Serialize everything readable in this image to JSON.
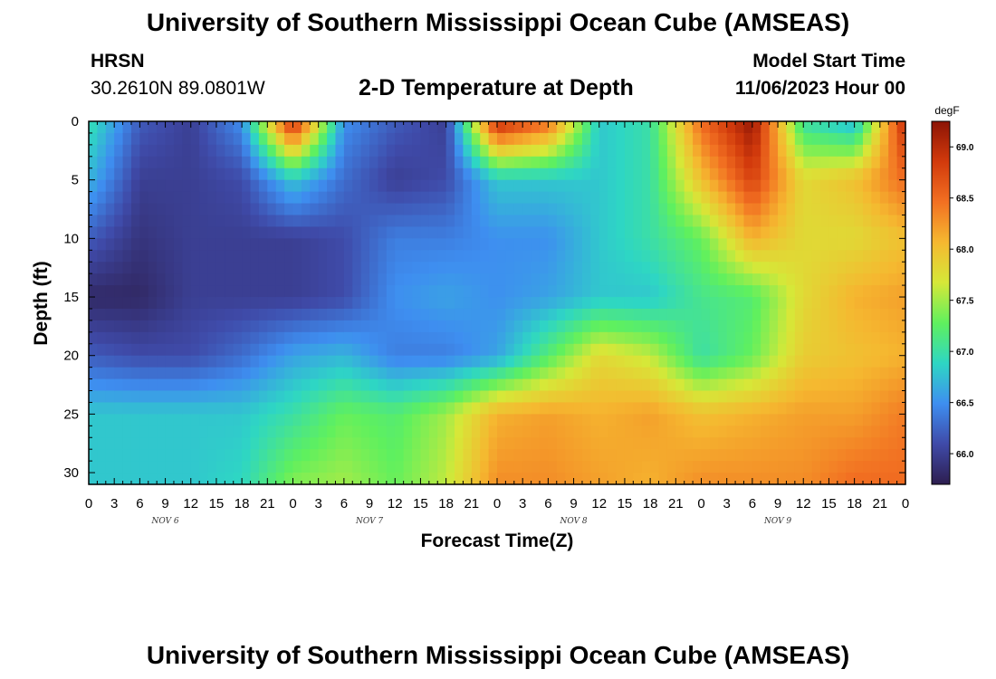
{
  "header": {
    "title": "University of Southern Mississippi Ocean Cube (AMSEAS)",
    "station": "HRSN",
    "coordinates": "30.2610N  89.0801W",
    "subtitle": "2-D Temperature at Depth",
    "model_start_label": "Model Start Time",
    "model_start_value": "11/06/2023 Hour 00"
  },
  "footer": {
    "title": "University of Southern Mississippi Ocean Cube (AMSEAS)"
  },
  "chart_data": {
    "type": "heatmap",
    "title": "2-D Temperature at Depth",
    "xlabel": "Forecast Time(Z)",
    "ylabel": "Depth (ft)",
    "x_tick_labels": [
      "0",
      "3",
      "6",
      "9",
      "12",
      "15",
      "18",
      "21",
      "0",
      "3",
      "6",
      "9",
      "12",
      "15",
      "18",
      "21",
      "0",
      "3",
      "6",
      "9",
      "12",
      "15",
      "18",
      "21",
      "0",
      "3",
      "6",
      "9",
      "12",
      "15",
      "18",
      "21",
      "0"
    ],
    "x_range_hours": [
      0,
      96
    ],
    "day_labels": [
      "NOV 6",
      "NOV 7",
      "NOV 8",
      "NOV 9"
    ],
    "y_ticks": [
      0,
      5,
      10,
      15,
      20,
      25,
      30
    ],
    "y_range": [
      0,
      31
    ],
    "y_inverted": true,
    "colorbar": {
      "unit": "degF",
      "ticks": [
        66.0,
        66.5,
        67.0,
        67.5,
        68.0,
        68.5,
        69.0
      ],
      "range": [
        65.7,
        69.25
      ]
    },
    "colorscale": [
      "#2d1e4f",
      "#3f4aa8",
      "#3e8ef0",
      "#2ed6c4",
      "#5ff05e",
      "#d6e838",
      "#f5b830",
      "#f27022",
      "#d23a0c",
      "#8c1405"
    ],
    "grid_x_hours": [
      0,
      6,
      12,
      18,
      24,
      30,
      36,
      42,
      48,
      54,
      60,
      66,
      72,
      78,
      84,
      90,
      96
    ],
    "grid_depths_ft": [
      0,
      5,
      10,
      15,
      20,
      25,
      31
    ],
    "temperature_degF": [
      [
        67.0,
        66.2,
        66.0,
        66.5,
        69.0,
        66.5,
        66.2,
        66.0,
        69.0,
        68.5,
        66.8,
        67.0,
        68.5,
        69.2,
        67.0,
        66.7,
        69.0
      ],
      [
        66.7,
        66.0,
        66.0,
        66.1,
        66.8,
        66.3,
        66.0,
        66.1,
        66.8,
        66.8,
        66.8,
        67.0,
        68.0,
        68.8,
        67.8,
        68.0,
        68.5
      ],
      [
        66.2,
        65.9,
        66.0,
        66.0,
        66.0,
        66.1,
        66.4,
        66.4,
        66.5,
        66.5,
        66.8,
        67.0,
        67.3,
        68.1,
        67.8,
        67.8,
        68.0
      ],
      [
        65.8,
        65.8,
        66.0,
        66.0,
        66.0,
        66.1,
        66.5,
        66.6,
        66.5,
        66.6,
        66.8,
        66.8,
        67.1,
        67.2,
        67.8,
        68.1,
        68.2
      ],
      [
        66.2,
        66.1,
        66.1,
        66.3,
        66.6,
        66.7,
        66.4,
        66.4,
        66.6,
        67.2,
        67.8,
        67.6,
        67.0,
        67.3,
        67.9,
        68.0,
        68.1
      ],
      [
        66.8,
        66.8,
        66.8,
        66.8,
        67.0,
        67.3,
        67.2,
        67.5,
        68.1,
        68.2,
        68.1,
        68.2,
        68.0,
        68.1,
        68.2,
        68.2,
        68.4
      ],
      [
        66.8,
        66.8,
        66.8,
        66.9,
        67.4,
        67.5,
        67.3,
        67.6,
        68.3,
        68.3,
        68.2,
        68.1,
        68.3,
        68.3,
        68.3,
        68.5,
        68.5
      ]
    ]
  }
}
